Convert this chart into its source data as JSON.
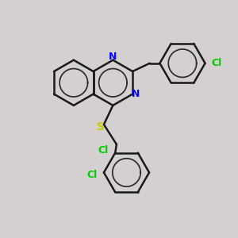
{
  "bg_color": "#d4d0d0",
  "bond_color": "#1a1a1a",
  "nitrogen_color": "#0000ff",
  "sulfur_color": "#cccc00",
  "chlorine_color": "#00cc00",
  "line_width": 1.8,
  "xlim": [
    -2.3,
    2.9
  ],
  "ylim": [
    -2.9,
    2.1
  ]
}
